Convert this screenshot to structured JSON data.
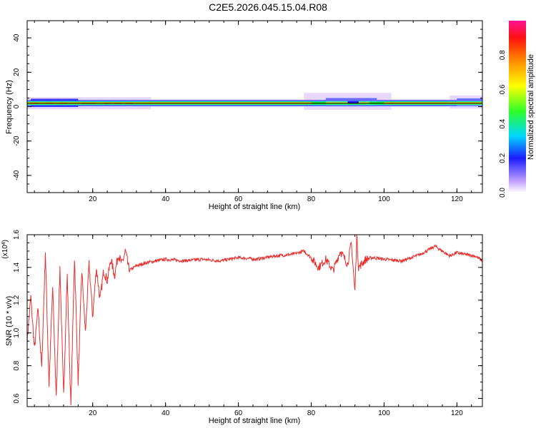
{
  "title": "C2E5.2026.045.15.04.R08",
  "colorbar": {
    "label": "Normalized spectral amplitude",
    "ticks": [
      "0.0",
      "0.2",
      "0.4",
      "0.6",
      "0.8"
    ]
  },
  "chart_data": [
    {
      "type": "heatmap",
      "xlabel": "Height of straight line (km)",
      "ylabel": "Frequency (Hz)",
      "xlim": [
        2,
        127
      ],
      "ylim": [
        -50,
        50
      ],
      "xticks": [
        "20",
        "40",
        "60",
        "80",
        "100",
        "120"
      ],
      "yticks": [
        "-40",
        "-20",
        "0",
        "20",
        "40"
      ],
      "band_center_hz": 2,
      "notes": "Narrow high-amplitude band centred near 2 Hz across all heights; broadened between ~80 and ~100 km"
    },
    {
      "type": "line",
      "xlabel": "Height of straight line (km)",
      "ylabel": "SNR (10 * v/v)",
      "scale_label": "(x10",
      "scale_exp": "4",
      "xlim": [
        2,
        127
      ],
      "ylim": [
        0.55,
        1.6
      ],
      "xticks": [
        "20",
        "40",
        "60",
        "80",
        "100",
        "120"
      ],
      "yticks": [
        "0.6",
        "0.8",
        "1.0",
        "1.2",
        "1.4",
        "1.6"
      ],
      "series": [
        {
          "name": "SNR",
          "color": "#e8302f",
          "x": [
            2,
            3,
            4,
            5,
            6,
            7,
            8,
            9,
            10,
            11,
            12,
            13,
            14,
            15,
            16,
            17,
            18,
            19,
            20,
            21,
            22,
            23,
            24,
            25,
            26,
            27,
            28,
            29,
            30,
            32,
            35,
            40,
            45,
            50,
            55,
            60,
            65,
            70,
            75,
            78,
            80,
            82,
            84,
            86,
            88,
            90,
            91,
            92,
            92.5,
            93,
            95,
            97,
            100,
            105,
            110,
            114,
            116,
            118,
            120,
            122,
            125,
            127
          ],
          "values": [
            0.95,
            1.22,
            0.9,
            1.15,
            0.78,
            1.5,
            0.68,
            1.28,
            0.6,
            1.4,
            0.62,
            1.35,
            0.55,
            1.46,
            0.7,
            1.38,
            1.0,
            1.42,
            1.1,
            1.4,
            1.2,
            1.38,
            1.32,
            1.45,
            1.35,
            1.48,
            1.42,
            1.5,
            1.38,
            1.41,
            1.43,
            1.45,
            1.44,
            1.45,
            1.44,
            1.46,
            1.45,
            1.47,
            1.48,
            1.5,
            1.46,
            1.4,
            1.45,
            1.38,
            1.5,
            1.42,
            1.55,
            1.25,
            1.6,
            1.4,
            1.45,
            1.46,
            1.45,
            1.44,
            1.48,
            1.53,
            1.5,
            1.47,
            1.49,
            1.48,
            1.47,
            1.44
          ]
        }
      ]
    }
  ]
}
